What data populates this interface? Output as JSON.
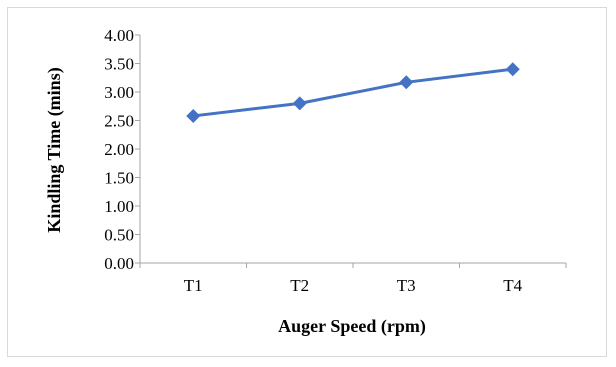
{
  "chart_data": {
    "type": "line",
    "categories": [
      "T1",
      "T2",
      "T3",
      "T4"
    ],
    "series": [
      {
        "values": [
          2.58,
          2.8,
          3.17,
          3.4
        ],
        "color": "#4472C4",
        "marker": "diamond"
      }
    ],
    "xlabel": "Auger Speed (rpm)",
    "ylabel": "Kindling Time (mins)",
    "ylim": [
      0,
      4
    ],
    "yticks": [
      "0.00",
      "0.50",
      "1.00",
      "1.50",
      "2.00",
      "2.50",
      "3.00",
      "3.50",
      "4.00"
    ],
    "grid": false,
    "legend": "none"
  }
}
